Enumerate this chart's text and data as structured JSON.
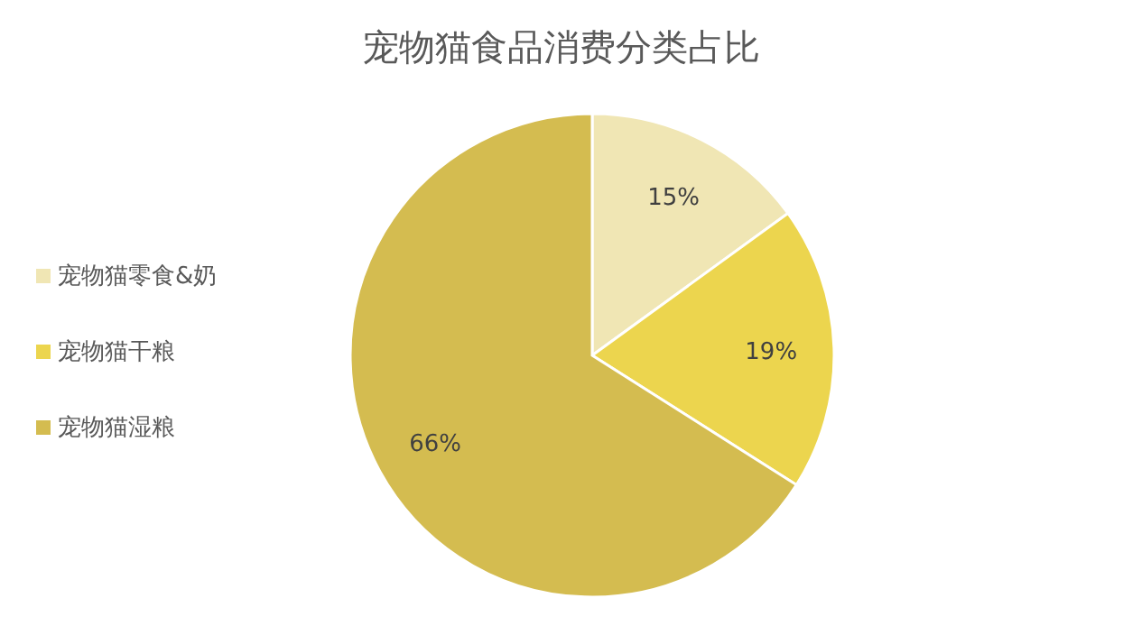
{
  "chart_data": {
    "type": "pie",
    "title": "宠物猫食品消费分类占比",
    "categories": [
      "宠物猫零食&奶",
      "宠物猫干粮",
      "宠物猫湿粮"
    ],
    "values": [
      15,
      19,
      66
    ],
    "colors": [
      "#f0e6b4",
      "#ecd54e",
      "#d4bc50"
    ],
    "value_labels": [
      "15%",
      "19%",
      "66%"
    ],
    "legend": "left"
  }
}
